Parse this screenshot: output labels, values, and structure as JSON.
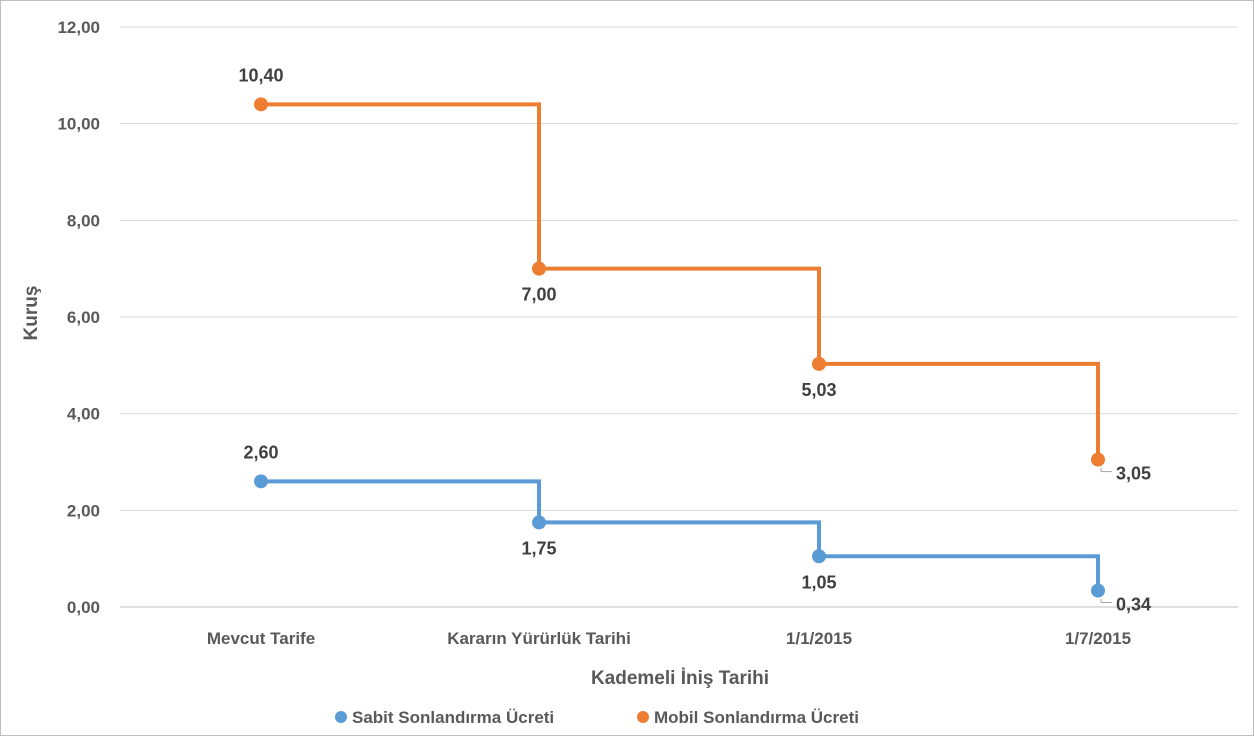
{
  "chart_data": {
    "type": "line",
    "step": true,
    "categories": [
      "Mevcut Tarife",
      "Kararın Yürürlük Tarihi",
      "1/1/2015",
      "1/7/2015"
    ],
    "series": [
      {
        "name": "Sabit Sonlandırma Ücreti",
        "color": "#5b9bd5",
        "values": [
          2.6,
          1.75,
          1.05,
          0.34
        ],
        "labels": [
          "2,60",
          "1,75",
          "1,05",
          "0,34"
        ]
      },
      {
        "name": "Mobil Sonlandırma Ücreti",
        "color": "#ed7d31",
        "values": [
          10.4,
          7.0,
          5.03,
          3.05
        ],
        "labels": [
          "10,40",
          "7,00",
          "5,03",
          "3,05"
        ]
      }
    ],
    "y_ticks": [
      0,
      2,
      4,
      6,
      8,
      10,
      12
    ],
    "y_tick_labels": [
      "0,00",
      "2,00",
      "4,00",
      "6,00",
      "8,00",
      "10,00",
      "12,00"
    ],
    "ylim": [
      0,
      12
    ],
    "xlabel": "Kademeli İniş Tarihi",
    "ylabel": "Kuruş",
    "grid": true,
    "legend": "bottom"
  }
}
